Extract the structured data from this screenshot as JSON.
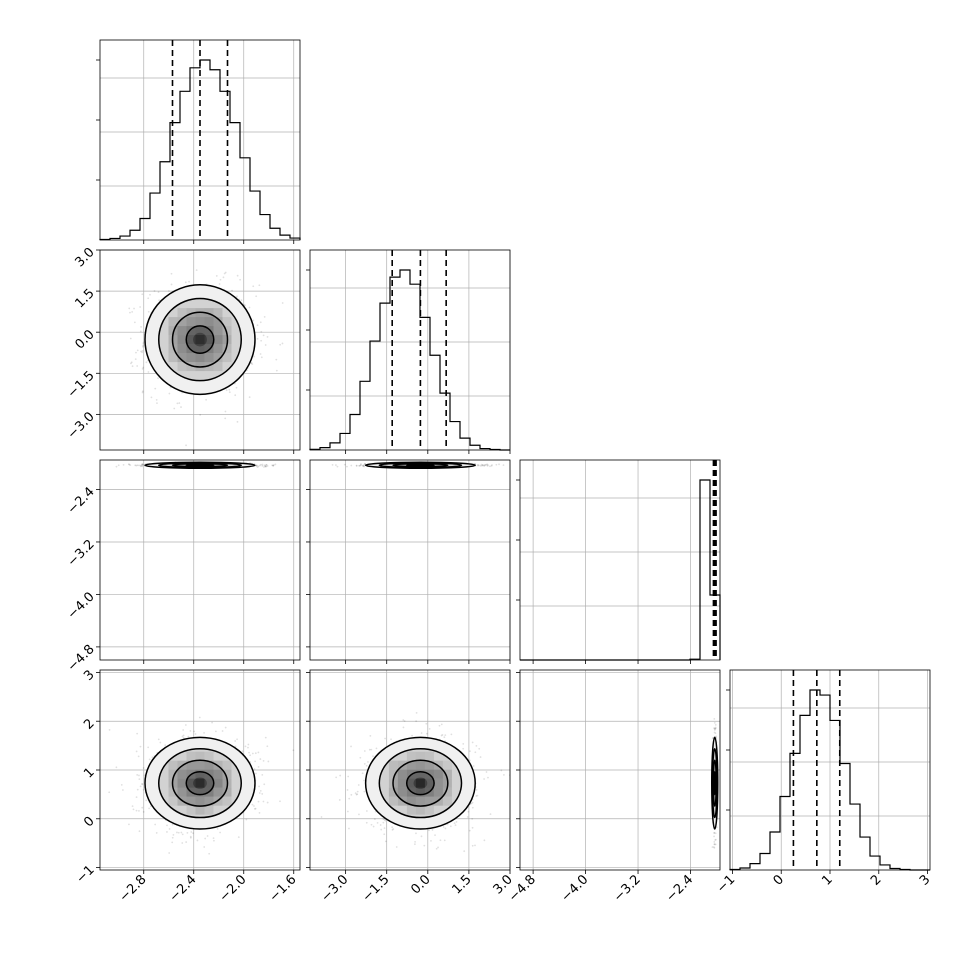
{
  "chart_data": {
    "type": "corner",
    "n_params": 4,
    "params": [
      {
        "range": [
          -3.15,
          -1.55
        ],
        "ticks": [
          -2.8,
          -2.4,
          -2.0,
          -1.6
        ],
        "tick_labels": [
          "−2.8",
          "−2.4",
          "−2.0",
          "−1.6"
        ],
        "quantiles": [
          -2.57,
          -2.35,
          -2.13
        ],
        "hist": {
          "x_edges_start": -3.15,
          "bin_width": 0.08,
          "counts": [
            3,
            8,
            20,
            50,
            110,
            240,
            400,
            600,
            760,
            880,
            920,
            870,
            760,
            600,
            420,
            250,
            130,
            60,
            25,
            10
          ]
        }
      },
      {
        "range": [
          -4.3,
          3.0
        ],
        "ticks": [
          -3.0,
          -1.5,
          0.0,
          1.5,
          3.0
        ],
        "tick_labels": [
          "−3.0",
          "−1.5",
          "0.0",
          "1.5",
          "3.0"
        ],
        "quantiles": [
          -1.3,
          -0.27,
          0.67
        ],
        "hist": {
          "x_edges_start": -4.3,
          "bin_width": 0.365,
          "counts": [
            3,
            10,
            30,
            70,
            150,
            290,
            460,
            620,
            730,
            760,
            700,
            560,
            400,
            240,
            120,
            50,
            20,
            6,
            2,
            0
          ]
        }
      },
      {
        "range": [
          -5.0,
          -1.95
        ],
        "ticks": [
          -4.8,
          -4.0,
          -3.2,
          -2.4
        ],
        "tick_labels": [
          "−4.8",
          "−4.0",
          "−3.2",
          "−2.4"
        ],
        "quantiles": [
          -2.05,
          -2.03,
          -2.01
        ],
        "hist": {
          "x_edges_start": -5.0,
          "bin_width": 0.1525,
          "counts": [
            0,
            0,
            0,
            0,
            0,
            0,
            0,
            0,
            0,
            0,
            0,
            0,
            0,
            0,
            0,
            0,
            0,
            8,
            1800,
            650
          ]
        }
      },
      {
        "range": [
          -1.05,
          3.05
        ],
        "ticks": [
          -1,
          0,
          1,
          2,
          3
        ],
        "tick_labels": [
          "−1",
          "0",
          "1",
          "2",
          "3"
        ],
        "quantiles": [
          0.25,
          0.73,
          1.2
        ],
        "hist": {
          "x_edges_start": -1.05,
          "bin_width": 0.205,
          "counts": [
            2,
            8,
            25,
            65,
            150,
            290,
            460,
            610,
            710,
            690,
            590,
            420,
            260,
            130,
            55,
            20,
            6,
            2,
            0,
            0
          ]
        }
      }
    ],
    "pairs": [
      {
        "row": 1,
        "col": 0,
        "mean_x": -2.35,
        "mean_y": -0.27,
        "sd_x": 0.22,
        "sd_y": 1.0
      },
      {
        "row": 2,
        "col": 0,
        "mean_x": -2.35,
        "mean_y": -2.03,
        "sd_x": 0.22,
        "sd_y": 0.012
      },
      {
        "row": 2,
        "col": 1,
        "mean_x": -0.27,
        "mean_y": -2.03,
        "sd_x": 1.0,
        "sd_y": 0.012
      },
      {
        "row": 3,
        "col": 0,
        "mean_x": -2.35,
        "mean_y": 0.73,
        "sd_x": 0.22,
        "sd_y": 0.47
      },
      {
        "row": 3,
        "col": 1,
        "mean_x": -0.27,
        "mean_y": 0.73,
        "sd_x": 1.0,
        "sd_y": 0.47
      },
      {
        "row": 3,
        "col": 2,
        "mean_x": -2.03,
        "mean_y": 0.73,
        "sd_x": 0.012,
        "sd_y": 0.47
      }
    ],
    "contour_levels_sigma": [
      0.5,
      1.0,
      1.5,
      2.0
    ],
    "grid": true,
    "title": "",
    "xlabel": "",
    "ylabel": ""
  }
}
